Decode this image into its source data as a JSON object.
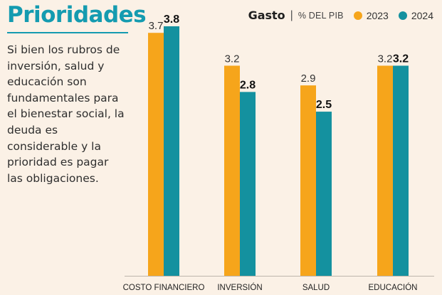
{
  "title": "Prioridades",
  "description": "Si bien los rubros de inversión, salud y educación son fundamentales para el bienestar social, la deuda es considerable y la prioridad es pagar las obligaciones.",
  "legend": {
    "heading": "Gasto",
    "separator": "|",
    "unit": "% DEL PIB",
    "items": [
      {
        "label": "2023",
        "color": "#f6a51b"
      },
      {
        "label": "2024",
        "color": "#14919f"
      }
    ]
  },
  "chart_data": {
    "type": "bar",
    "title": "Prioridades",
    "ylabel": "Gasto (% del PIB)",
    "categories": [
      "COSTO FINANCIERO",
      "INVERSIÓN",
      "SALUD",
      "EDUCACIÓN"
    ],
    "series": [
      {
        "name": "2023",
        "values": [
          3.7,
          3.2,
          2.9,
          3.2
        ],
        "labels": [
          "3.7",
          "3.2",
          "2.9",
          "3.2"
        ],
        "color": "#f6a51b"
      },
      {
        "name": "2024",
        "values": [
          3.8,
          2.8,
          2.5,
          3.2
        ],
        "labels": [
          "3.8",
          "2.8",
          "2.5",
          "3.2"
        ],
        "color": "#14919f"
      }
    ],
    "ylim": [
      0,
      3.8
    ],
    "grid": false
  }
}
